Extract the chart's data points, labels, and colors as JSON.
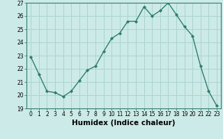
{
  "x": [
    0,
    1,
    2,
    3,
    4,
    5,
    6,
    7,
    8,
    9,
    10,
    11,
    12,
    13,
    14,
    15,
    16,
    17,
    18,
    19,
    20,
    21,
    22,
    23
  ],
  "y": [
    22.9,
    21.6,
    20.3,
    20.2,
    19.9,
    20.3,
    21.1,
    21.9,
    22.2,
    23.3,
    24.3,
    24.7,
    25.6,
    25.6,
    26.7,
    26.0,
    26.4,
    27.0,
    26.1,
    25.2,
    24.5,
    22.2,
    20.3,
    19.2
  ],
  "line_color": "#2e7d6e",
  "marker_color": "#2e7d6e",
  "bg_color": "#cceae7",
  "grid_color": "#aad4d0",
  "xlabel": "Humidex (Indice chaleur)",
  "ylim": [
    19,
    27
  ],
  "xlim_min": -0.5,
  "xlim_max": 23.5,
  "yticks": [
    19,
    20,
    21,
    22,
    23,
    24,
    25,
    26,
    27
  ],
  "xticks": [
    0,
    1,
    2,
    3,
    4,
    5,
    6,
    7,
    8,
    9,
    10,
    11,
    12,
    13,
    14,
    15,
    16,
    17,
    18,
    19,
    20,
    21,
    22,
    23
  ],
  "tick_label_fontsize": 5.5,
  "xlabel_fontsize": 7.5
}
